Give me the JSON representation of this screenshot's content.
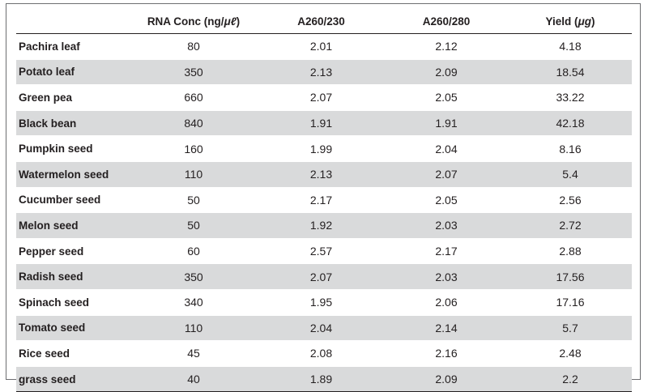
{
  "table": {
    "headers": [
      {
        "text": "",
        "unit": "",
        "suffix": ""
      },
      {
        "text": "RNA Conc (ng/",
        "unit": "μℓ",
        "suffix": ")"
      },
      {
        "text": "A260/230",
        "unit": "",
        "suffix": ""
      },
      {
        "text": "A260/280",
        "unit": "",
        "suffix": ""
      },
      {
        "text": "Yield (",
        "unit": "μg",
        "suffix": ")"
      }
    ],
    "rows": [
      [
        "Pachira leaf",
        "80",
        "2.01",
        "2.12",
        "4.18"
      ],
      [
        "Potato leaf",
        "350",
        "2.13",
        "2.09",
        "18.54"
      ],
      [
        "Green pea",
        "660",
        "2.07",
        "2.05",
        "33.22"
      ],
      [
        "Black bean",
        "840",
        "1.91",
        "1.91",
        "42.18"
      ],
      [
        "Pumpkin seed",
        "160",
        "1.99",
        "2.04",
        "8.16"
      ],
      [
        "Watermelon seed",
        "110",
        "2.13",
        "2.07",
        "5.4"
      ],
      [
        "Cucumber seed",
        "50",
        "2.17",
        "2.05",
        "2.56"
      ],
      [
        "Melon seed",
        "50",
        "1.92",
        "2.03",
        "2.72"
      ],
      [
        "Pepper seed",
        "60",
        "2.57",
        "2.17",
        "2.88"
      ],
      [
        "Radish seed",
        "350",
        "2.07",
        "2.03",
        "17.56"
      ],
      [
        "Spinach seed",
        "340",
        "1.95",
        "2.06",
        "17.16"
      ],
      [
        "Tomato seed",
        "110",
        "2.04",
        "2.14",
        "5.7"
      ],
      [
        "Rice seed",
        "45",
        "2.08",
        "2.16",
        "2.48"
      ],
      [
        "grass seed",
        "40",
        "1.89",
        "2.09",
        "2.2"
      ]
    ],
    "shade_color": "#d9dadb"
  }
}
